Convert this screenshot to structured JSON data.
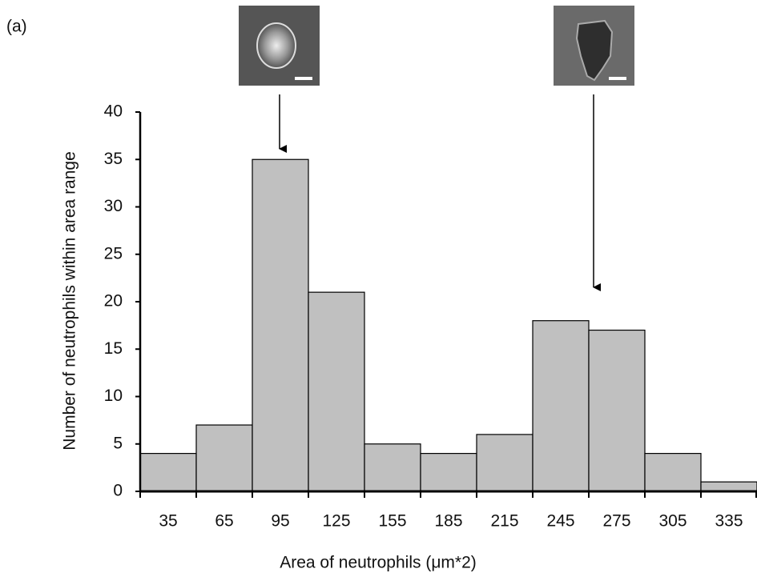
{
  "chart_data": {
    "type": "bar",
    "title": "(a)",
    "x_label": "Area of neutrophils (μm*2)",
    "y_label": "Number of neutrophils within area range",
    "categories": [
      "35",
      "65",
      "95",
      "125",
      "155",
      "185",
      "215",
      "245",
      "275",
      "305",
      "335"
    ],
    "values": [
      4,
      7,
      35,
      21,
      5,
      4,
      6,
      18,
      17,
      4,
      1
    ],
    "color": "#c0c0c0",
    "ylim": [
      0,
      40
    ],
    "yticks": [
      0,
      5,
      10,
      15,
      20,
      25,
      30,
      35,
      40
    ],
    "grid": false
  }
}
